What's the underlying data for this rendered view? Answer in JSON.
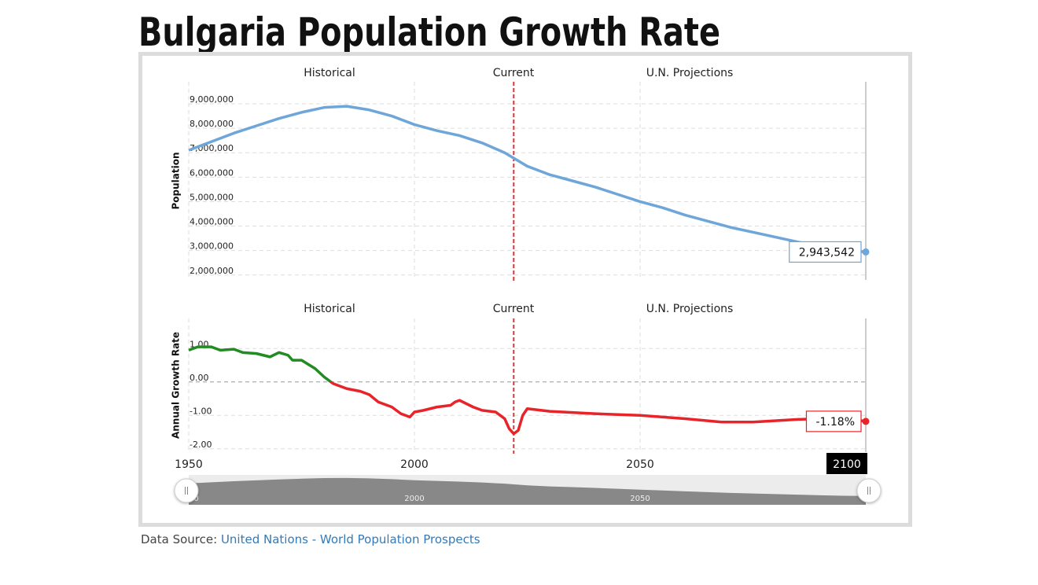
{
  "title": "Bulgaria Population Growth Rate",
  "chart_data": [
    {
      "type": "line",
      "period_labels": [
        "Historical",
        "Current",
        "U.N. Projections"
      ],
      "current_x": 2022,
      "ylabel": "Population",
      "x": [
        1950,
        1955,
        1960,
        1965,
        1970,
        1975,
        1980,
        1985,
        1990,
        1995,
        2000,
        2005,
        2010,
        2015,
        2020,
        2025,
        2030,
        2035,
        2040,
        2045,
        2050,
        2055,
        2060,
        2065,
        2070,
        2075,
        2080,
        2085,
        2090,
        2095,
        2100
      ],
      "series": [
        {
          "color": "#6ea6d9",
          "values": [
            7100000,
            7450000,
            7800000,
            8100000,
            8400000,
            8650000,
            8850000,
            8900000,
            8750000,
            8500000,
            8150000,
            7900000,
            7700000,
            7400000,
            7000000,
            6450000,
            6100000,
            5850000,
            5600000,
            5300000,
            5000000,
            4750000,
            4450000,
            4200000,
            3950000,
            3750000,
            3550000,
            3350000,
            3150000,
            3000000,
            2943542
          ],
          "value_labels": [
            null,
            null,
            null,
            null,
            null,
            null,
            null,
            null,
            null,
            null,
            null,
            null,
            null,
            null,
            null,
            null,
            null,
            null,
            null,
            null,
            null,
            null,
            null,
            null,
            null,
            null,
            null,
            null,
            null,
            null,
            "2,943,542"
          ]
        }
      ],
      "xlim": [
        1950,
        2100
      ],
      "xticks": [
        1950,
        2000,
        2050,
        2100
      ],
      "ylim": [
        1800000,
        9900000
      ],
      "yticks": [
        {
          "value": 2000000,
          "label": "2,000,000"
        },
        {
          "value": 3000000,
          "label": "3,000,000"
        },
        {
          "value": 4000000,
          "label": "4,000,000"
        },
        {
          "value": 5000000,
          "label": "5,000,000"
        },
        {
          "value": 6000000,
          "label": "6,000,000"
        },
        {
          "value": 7000000,
          "label": "7,000,000"
        },
        {
          "value": 8000000,
          "label": "8,000,000"
        },
        {
          "value": 9000000,
          "label": "9,000,000"
        }
      ],
      "grid": true
    },
    {
      "type": "line",
      "period_labels": [
        "Historical",
        "Current",
        "U.N. Projections"
      ],
      "current_x": 2022,
      "ylabel": "Annual Growth Rate",
      "x": [
        1950,
        1952,
        1955,
        1957,
        1960,
        1962,
        1965,
        1968,
        1970,
        1972,
        1973,
        1975,
        1978,
        1980,
        1982,
        1985,
        1988,
        1990,
        1992,
        1995,
        1997,
        1999,
        2000,
        2002,
        2005,
        2008,
        2009,
        2010,
        2013,
        2015,
        2018,
        2020,
        2021,
        2022,
        2023,
        2024,
        2025,
        2030,
        2040,
        2050,
        2060,
        2068,
        2075,
        2085,
        2095,
        2100
      ],
      "series": [
        {
          "color": "#228b22",
          "negative_color": "#e8232a",
          "values": [
            0.95,
            1.05,
            1.05,
            0.95,
            0.98,
            0.88,
            0.85,
            0.75,
            0.88,
            0.8,
            0.65,
            0.65,
            0.4,
            0.15,
            -0.05,
            -0.2,
            -0.28,
            -0.38,
            -0.6,
            -0.75,
            -0.95,
            -1.05,
            -0.9,
            -0.85,
            -0.75,
            -0.7,
            -0.6,
            -0.55,
            -0.75,
            -0.85,
            -0.9,
            -1.1,
            -1.4,
            -1.55,
            -1.45,
            -1.0,
            -0.8,
            -0.88,
            -0.95,
            -1.0,
            -1.1,
            -1.2,
            -1.2,
            -1.12,
            -1.08,
            -1.18
          ],
          "value_labels": [
            null,
            null,
            null,
            null,
            null,
            null,
            null,
            null,
            null,
            null,
            null,
            null,
            null,
            null,
            null,
            null,
            null,
            null,
            null,
            null,
            null,
            null,
            null,
            null,
            null,
            null,
            null,
            null,
            null,
            null,
            null,
            null,
            null,
            null,
            null,
            null,
            null,
            null,
            null,
            null,
            null,
            null,
            null,
            null,
            null,
            "-1.18%"
          ]
        }
      ],
      "xlim": [
        1950,
        2100
      ],
      "xticks": [
        1950,
        2000,
        2050,
        2100
      ],
      "ylim": [
        -2.1,
        1.9
      ],
      "yticks": [
        {
          "value": -2,
          "label": "-2.00"
        },
        {
          "value": -1,
          "label": "-1.00"
        },
        {
          "value": 0,
          "label": "0.00"
        },
        {
          "value": 1,
          "label": "1.00"
        }
      ],
      "grid": true
    }
  ],
  "source": {
    "label": "Data Source:",
    "link": "United Nations - World Population Prospects"
  }
}
